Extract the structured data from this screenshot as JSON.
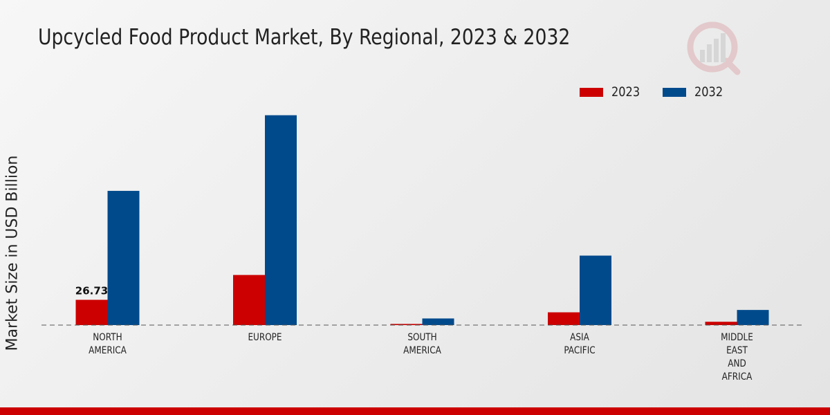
{
  "chart_data": {
    "type": "bar",
    "title": "Upcycled Food Product Market, By Regional, 2023 & 2032",
    "xlabel": "",
    "ylabel": "Market Size in USD Billion",
    "categories": [
      [
        "NORTH",
        "AMERICA"
      ],
      [
        "EUROPE"
      ],
      [
        "SOUTH",
        "AMERICA"
      ],
      [
        "ASIA",
        "PACIFIC"
      ],
      [
        "MIDDLE",
        "EAST",
        "AND",
        "AFRICA"
      ]
    ],
    "series": [
      {
        "name": "2023",
        "color": "#cc0000",
        "values": [
          26.73,
          53.0,
          1.2,
          13.5,
          3.5
        ]
      },
      {
        "name": "2032",
        "color": "#004a8c",
        "values": [
          142.0,
          222.0,
          7.0,
          73.5,
          16.0
        ]
      }
    ],
    "data_labels": [
      {
        "series": 0,
        "index": 0,
        "text": "26.73"
      }
    ],
    "ylim": [
      0,
      300
    ],
    "grid": false,
    "legend_position": "top-right"
  },
  "brand": {
    "accent": "#cc0000"
  }
}
